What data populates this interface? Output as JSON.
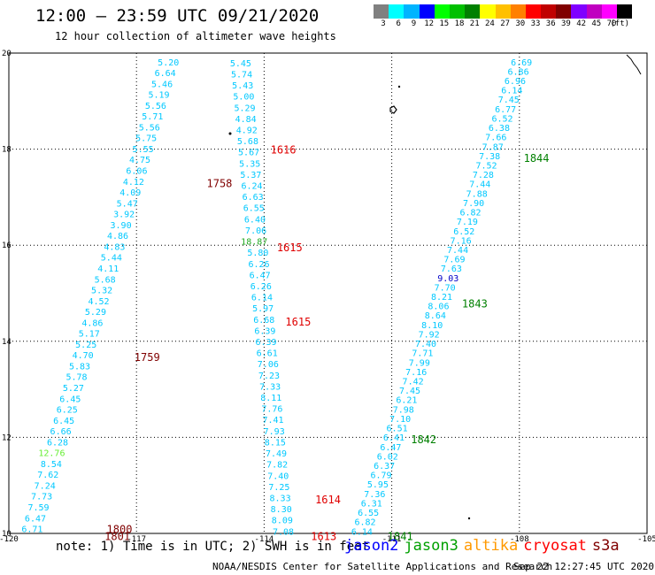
{
  "title": "12:00 – 23:59 UTC 09/21/2020",
  "subtitle": "12 hour collection of altimeter wave heights",
  "colorbar": {
    "colors": [
      "#808080",
      "#00ffff",
      "#00b4ff",
      "#0000ff",
      "#00ff00",
      "#00c000",
      "#008000",
      "#ffff00",
      "#ffc000",
      "#ff8000",
      "#ff0000",
      "#c00000",
      "#800000",
      "#8000ff",
      "#c000c0",
      "#ff00ff",
      "#000000"
    ],
    "labels": [
      "3",
      "6",
      "9",
      "12",
      "15",
      "18",
      "21",
      "24",
      "27",
      "30",
      "33",
      "36",
      "39",
      "42",
      "45",
      "70",
      "(ft)"
    ]
  },
  "axes": {
    "lon_ticks": [
      "-120",
      "-117",
      "-114",
      "-111",
      "-108",
      "-105"
    ],
    "lat_ticks": [
      "10",
      "12",
      "14",
      "16",
      "18",
      "20"
    ]
  },
  "chart_data": {
    "type": "scatter",
    "lon_range": [
      -120,
      -105
    ],
    "lat_range": [
      10,
      20
    ],
    "grid": true,
    "tracks": [
      {
        "color": "#00c8ff",
        "lat_start": 19.82,
        "lat_end": 10.1,
        "lon_start": -116.0,
        "lon_end": -119.2,
        "values": [
          "5.20",
          "6.64",
          "5.46",
          "5.19",
          "5.56",
          "5.71",
          "5.56",
          "5.75",
          "5.55",
          "4.75",
          "6.06",
          "4.12",
          "4.09",
          "5.47",
          "3.92",
          "3.90",
          "4.86",
          "4.83",
          "5.44",
          "4.11",
          "5.68",
          "5.32",
          "4.52",
          "5.29",
          "4.86",
          "5.17",
          "5.25",
          "4.70",
          "5.83",
          "5.78",
          "5.27",
          "6.45",
          "6.25",
          "6.45",
          "6.66",
          "6.28",
          "12.76",
          "8.54",
          "7.62",
          "7.24",
          "7.73",
          "7.59",
          "6.47",
          "6.71"
        ],
        "colors": {
          "12.76": "#66ee33"
        }
      },
      {
        "color": "#00c8ff",
        "lat_start": 19.8,
        "lat_end": 10.05,
        "lon_start": -114.3,
        "lon_end": -113.3,
        "values": [
          "5.45",
          "5.74",
          "5.43",
          "5.00",
          "5.29",
          "4.84",
          "4.92",
          "5.68",
          "5.67",
          "5.35",
          "5.37",
          "6.24",
          "6.63",
          "6.55",
          "6.40",
          "7.06",
          "18.87",
          "5.80",
          "6.26",
          "6.47",
          "6.26",
          "6.14",
          "5.97",
          "6.68",
          "6.39",
          "6.39",
          "6.61",
          "7.06",
          "7.23",
          "7.33",
          "8.11",
          "7.76",
          "7.41",
          "7.93",
          "8.15",
          "7.49",
          "7.82",
          "7.40",
          "7.25",
          "8.33",
          "8.30",
          "8.09",
          "7.08"
        ],
        "colors": {
          "18.87": "#22aa22"
        }
      },
      {
        "color": "#00c8ff",
        "lat_start": 19.82,
        "lat_end": 10.05,
        "lon_start": -107.7,
        "lon_end": -111.45,
        "values": [
          "6.69",
          "6.86",
          "6.96",
          "6.14",
          "7.45",
          "6.77",
          "6.52",
          "6.38",
          "7.66",
          "7.87",
          "7.38",
          "7.52",
          "7.28",
          "7.44",
          "7.88",
          "7.90",
          "6.82",
          "7.19",
          "6.52",
          "7.16",
          "7.44",
          "7.69",
          "7.63",
          "9.03",
          "7.70",
          "8.21",
          "8.06",
          "8.64",
          "8.10",
          "7.92",
          "7.40",
          "7.71",
          "7.99",
          "7.16",
          "7.42",
          "7.45",
          "6.21",
          "7.98",
          "7.10",
          "6.51",
          "6.41",
          "6.47",
          "6.02",
          "6.37",
          "6.79",
          "5.95",
          "7.36",
          "6.31",
          "6.55",
          "6.82",
          "6.14"
        ],
        "colors": {
          "9.03": "#0000c8"
        }
      }
    ],
    "time_labels": [
      {
        "text": "1758",
        "lat": 17.3,
        "lon": -115.35,
        "color": "#800000"
      },
      {
        "text": "1759",
        "lat": 13.68,
        "lon": -117.05,
        "color": "#800000"
      },
      {
        "text": "1800",
        "lat": 10.1,
        "lon": -117.7,
        "color": "#800000"
      },
      {
        "text": "1801",
        "lat": 9.95,
        "lon": -117.75,
        "color": "#800000"
      },
      {
        "text": "1616",
        "lat": 18.0,
        "lon": -113.85,
        "color": "#e00000"
      },
      {
        "text": "1615",
        "lat": 15.97,
        "lon": -113.7,
        "color": "#e00000"
      },
      {
        "text": "1615",
        "lat": 14.42,
        "lon": -113.5,
        "color": "#e00000"
      },
      {
        "text": "1614",
        "lat": 10.72,
        "lon": -112.8,
        "color": "#e00000"
      },
      {
        "text": "1613",
        "lat": 9.95,
        "lon": -112.9,
        "color": "#e00000"
      },
      {
        "text": "1844",
        "lat": 17.83,
        "lon": -107.9,
        "color": "#008000"
      },
      {
        "text": "1843",
        "lat": 14.8,
        "lon": -109.35,
        "color": "#008000"
      },
      {
        "text": "1842",
        "lat": 11.97,
        "lon": -110.55,
        "color": "#008000"
      },
      {
        "text": "1841",
        "lat": 9.95,
        "lon": -111.1,
        "color": "#008000"
      }
    ]
  },
  "note": "note: 1) Time is in UTC; 2) SWH is in feet",
  "legend": [
    {
      "name": "jason2",
      "color": "#0000ff"
    },
    {
      "name": "jason3",
      "color": "#00a000"
    },
    {
      "name": "altika",
      "color": "#ff9900"
    },
    {
      "name": "cryosat",
      "color": "#ff0000"
    },
    {
      "name": "s3a",
      "color": "#800000"
    }
  ],
  "credit": "NOAA/NESDIS Center for Satellite Applications and Research",
  "timestamp": "Sep 22 12:27:45 UTC 2020"
}
